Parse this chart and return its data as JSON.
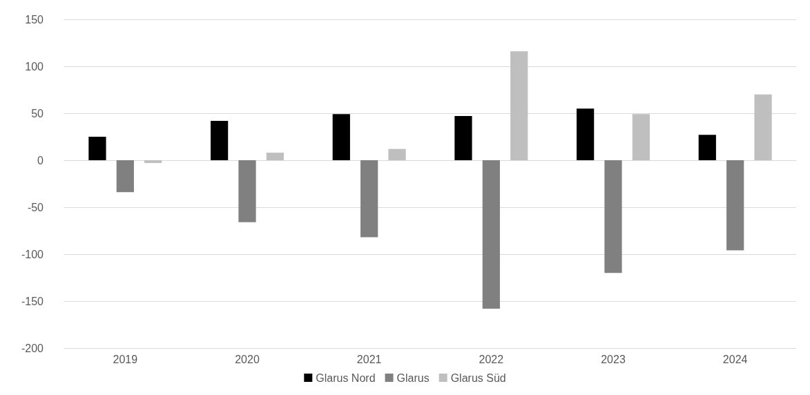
{
  "chart_data": {
    "type": "bar",
    "categories": [
      "2019",
      "2020",
      "2021",
      "2022",
      "2023",
      "2024"
    ],
    "series": [
      {
        "name": "Glarus Nord",
        "color": "#000000",
        "values": [
          25,
          42,
          49,
          47,
          55,
          27
        ]
      },
      {
        "name": "Glarus",
        "color": "#808080",
        "values": [
          -34,
          -66,
          -82,
          -158,
          -120,
          -96
        ]
      },
      {
        "name": "Glarus Süd",
        "color": "#bfbfbf",
        "values": [
          -3,
          8,
          12,
          116,
          49,
          70
        ]
      }
    ],
    "ylim": [
      -200,
      150
    ],
    "yticks": [
      -200,
      -150,
      -100,
      -50,
      0,
      50,
      100,
      150
    ],
    "grid": "y",
    "legend": "bottom"
  }
}
